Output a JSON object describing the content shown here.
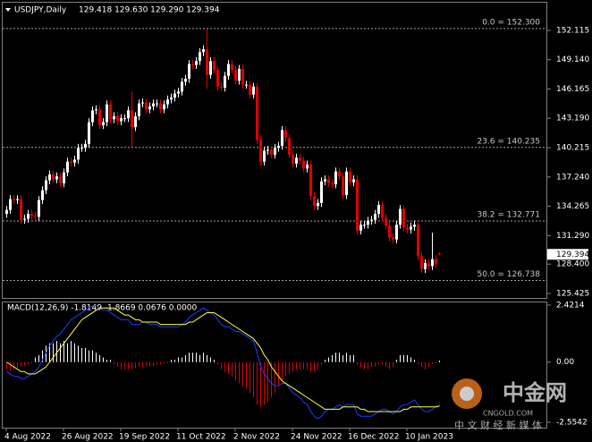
{
  "chart_data": {
    "type": "candlestick",
    "symbol": "USDJPY,Daily",
    "header_values": "129.418 129.630 129.290 129.394",
    "ylim": [
      124.97,
      154.92
    ],
    "yticks": [
      152.115,
      {
        "value": 149.14,
        "label": "149.140"
      },
      146.165,
      {
        "value": 143.19,
        "label": "143.190"
      },
      140.215,
      {
        "value": 137.24,
        "label": "137.240"
      },
      134.265,
      {
        "value": 131.29,
        "label": "131.290"
      },
      {
        "value": 128.4,
        "label": "128.400"
      },
      125.425
    ],
    "xticks": [
      {
        "value": 0,
        "label": "4 Aug 2022"
      },
      {
        "value": 16,
        "label": "26 Aug 2022"
      },
      {
        "value": 32,
        "label": "19 Sep 2022"
      },
      {
        "value": 48,
        "label": "11 Oct 2022"
      },
      {
        "value": 64,
        "label": "2 Nov 2022"
      },
      {
        "value": 80,
        "label": "24 Nov 2022"
      },
      {
        "value": 96,
        "label": "16 Dec 2022"
      },
      {
        "value": 112,
        "label": "10 Jan 2023"
      }
    ],
    "up_color": "#ffffff",
    "down_color": "#e00000",
    "fib_levels": [
      {
        "value": 152.3,
        "label": "0.0 = 152.300"
      },
      {
        "value": 140.235,
        "label": "23.6 = 140.235"
      },
      {
        "value": 132.771,
        "label": "38.2 = 132.771"
      },
      {
        "value": 126.738,
        "label": "50.0 = 126.738"
      }
    ],
    "ohlc": [
      [
        133.5,
        134.3,
        133.1,
        133.9
      ],
      [
        133.9,
        135.4,
        133.5,
        135.0
      ],
      [
        135.0,
        135.4,
        134.5,
        134.9
      ],
      [
        134.9,
        135.4,
        134.5,
        135.0
      ],
      [
        135.0,
        135.4,
        132.5,
        132.9
      ],
      [
        132.9,
        133.4,
        132.5,
        133.0
      ],
      [
        133.0,
        133.9,
        132.6,
        133.5
      ],
      [
        133.5,
        133.9,
        132.9,
        133.3
      ],
      [
        133.3,
        133.7,
        132.8,
        133.2
      ],
      [
        133.2,
        135.3,
        132.8,
        134.9
      ],
      [
        134.9,
        136.3,
        134.5,
        135.9
      ],
      [
        135.9,
        137.3,
        135.5,
        136.9
      ],
      [
        136.9,
        137.9,
        136.5,
        137.5
      ],
      [
        137.5,
        137.9,
        136.6,
        137.0
      ],
      [
        137.0,
        137.7,
        136.6,
        137.3
      ],
      [
        137.3,
        137.7,
        136.2,
        136.6
      ],
      [
        136.6,
        138.1,
        136.2,
        137.7
      ],
      [
        137.7,
        139.2,
        137.3,
        138.8
      ],
      [
        138.8,
        139.2,
        138.3,
        138.7
      ],
      [
        138.7,
        139.4,
        138.3,
        139.0
      ],
      [
        139.0,
        140.6,
        138.6,
        140.2
      ],
      [
        140.2,
        140.6,
        139.8,
        140.2
      ],
      [
        140.2,
        141.0,
        139.8,
        140.6
      ],
      [
        140.6,
        143.2,
        140.2,
        142.8
      ],
      [
        142.8,
        144.4,
        142.4,
        144.0
      ],
      [
        144.0,
        144.5,
        143.6,
        144.1
      ],
      [
        144.1,
        144.5,
        142.1,
        142.5
      ],
      [
        142.5,
        143.2,
        142.1,
        142.8
      ],
      [
        142.8,
        145.0,
        142.4,
        144.6
      ],
      [
        144.6,
        145.0,
        142.7,
        143.1
      ],
      [
        143.1,
        143.8,
        142.7,
        143.4
      ],
      [
        143.4,
        143.8,
        142.5,
        142.9
      ],
      [
        142.9,
        143.6,
        142.5,
        143.2
      ],
      [
        143.2,
        143.6,
        142.8,
        143.2
      ],
      [
        143.2,
        144.4,
        142.8,
        144.0
      ],
      [
        144.0,
        145.9,
        140.3,
        142.3
      ],
      [
        142.3,
        143.8,
        141.9,
        143.4
      ],
      [
        143.4,
        145.1,
        143.0,
        144.7
      ],
      [
        144.7,
        145.2,
        144.3,
        144.8
      ],
      [
        144.8,
        145.2,
        143.7,
        144.1
      ],
      [
        144.1,
        144.8,
        143.7,
        144.4
      ],
      [
        144.4,
        145.1,
        144.0,
        144.7
      ],
      [
        144.7,
        145.1,
        144.3,
        144.7
      ],
      [
        144.7,
        145.1,
        143.7,
        144.1
      ],
      [
        144.1,
        145.0,
        143.7,
        144.6
      ],
      [
        144.6,
        145.5,
        144.2,
        145.1
      ],
      [
        145.1,
        145.7,
        144.7,
        145.3
      ],
      [
        145.3,
        146.1,
        144.9,
        145.7
      ],
      [
        145.7,
        146.3,
        145.3,
        145.9
      ],
      [
        145.9,
        147.3,
        145.5,
        146.9
      ],
      [
        146.9,
        147.6,
        146.5,
        147.2
      ],
      [
        147.2,
        149.1,
        146.8,
        148.7
      ],
      [
        148.7,
        149.1,
        148.2,
        148.6
      ],
      [
        148.6,
        149.4,
        148.2,
        149.0
      ],
      [
        149.0,
        150.3,
        148.6,
        149.9
      ],
      [
        149.9,
        150.6,
        149.5,
        150.2
      ],
      [
        150.2,
        152.3,
        146.2,
        147.6
      ],
      [
        147.6,
        149.4,
        147.2,
        149.0
      ],
      [
        149.0,
        149.4,
        147.7,
        148.1
      ],
      [
        148.1,
        148.5,
        146.0,
        146.4
      ],
      [
        146.4,
        146.8,
        145.9,
        146.3
      ],
      [
        146.3,
        147.9,
        145.9,
        147.5
      ],
      [
        147.5,
        149.1,
        147.1,
        148.7
      ],
      [
        148.7,
        149.1,
        147.7,
        148.1
      ],
      [
        148.1,
        148.5,
        146.6,
        147.0
      ],
      [
        147.0,
        148.6,
        146.6,
        148.2
      ],
      [
        148.2,
        148.6,
        146.2,
        146.6
      ],
      [
        146.6,
        147.0,
        146.2,
        146.6
      ],
      [
        146.6,
        147.0,
        145.2,
        145.6
      ],
      [
        145.6,
        146.8,
        145.2,
        146.4
      ],
      [
        146.4,
        146.8,
        140.6,
        141.0
      ],
      [
        141.0,
        141.4,
        138.4,
        138.8
      ],
      [
        138.8,
        140.3,
        138.4,
        139.9
      ],
      [
        139.9,
        140.4,
        139.5,
        140.0
      ],
      [
        140.0,
        140.4,
        139.1,
        139.5
      ],
      [
        139.5,
        140.6,
        139.1,
        140.2
      ],
      [
        140.2,
        140.8,
        139.8,
        140.4
      ],
      [
        140.4,
        142.4,
        140.0,
        142.0
      ],
      [
        142.0,
        142.4,
        140.8,
        141.2
      ],
      [
        141.2,
        141.6,
        139.1,
        139.5
      ],
      [
        139.5,
        139.9,
        138.2,
        138.6
      ],
      [
        138.6,
        139.6,
        138.2,
        139.2
      ],
      [
        139.2,
        139.6,
        138.5,
        138.9
      ],
      [
        138.9,
        139.3,
        137.7,
        138.1
      ],
      [
        138.1,
        138.9,
        137.7,
        138.5
      ],
      [
        138.5,
        138.9,
        134.9,
        135.3
      ],
      [
        135.3,
        135.7,
        133.9,
        134.3
      ],
      [
        134.3,
        135.0,
        133.9,
        134.6
      ],
      [
        134.6,
        137.2,
        134.2,
        136.8
      ],
      [
        136.8,
        137.4,
        136.4,
        137.0
      ],
      [
        137.0,
        137.4,
        136.2,
        136.6
      ],
      [
        136.6,
        137.0,
        136.1,
        136.5
      ],
      [
        136.5,
        138.2,
        136.1,
        137.8
      ],
      [
        137.8,
        138.2,
        136.9,
        137.3
      ],
      [
        137.3,
        137.7,
        135.0,
        135.4
      ],
      [
        135.4,
        138.2,
        135.0,
        137.8
      ],
      [
        137.8,
        138.2,
        136.3,
        136.7
      ],
      [
        136.7,
        137.4,
        136.3,
        137.0
      ],
      [
        137.0,
        137.4,
        131.4,
        131.8
      ],
      [
        131.8,
        132.8,
        131.4,
        132.4
      ],
      [
        132.4,
        132.8,
        132.0,
        132.4
      ],
      [
        132.4,
        133.2,
        132.0,
        132.8
      ],
      [
        132.8,
        133.3,
        132.4,
        132.9
      ],
      [
        132.9,
        133.9,
        132.5,
        133.5
      ],
      [
        133.5,
        134.8,
        133.1,
        134.4
      ],
      [
        134.4,
        134.8,
        132.7,
        133.1
      ],
      [
        133.1,
        133.5,
        131.9,
        132.3
      ],
      [
        132.3,
        132.7,
        130.7,
        131.1
      ],
      [
        131.1,
        131.5,
        130.5,
        130.9
      ],
      [
        130.9,
        132.8,
        130.5,
        132.4
      ],
      [
        132.4,
        134.4,
        132.0,
        134.0
      ],
      [
        134.0,
        134.4,
        131.7,
        132.1
      ],
      [
        132.1,
        132.5,
        131.5,
        131.9
      ],
      [
        131.9,
        132.6,
        131.5,
        132.2
      ],
      [
        132.2,
        132.8,
        131.8,
        132.4
      ],
      [
        132.4,
        132.8,
        128.8,
        129.2
      ],
      [
        129.2,
        129.6,
        127.5,
        127.9
      ],
      [
        127.9,
        128.9,
        127.5,
        128.5
      ],
      [
        128.5,
        128.9,
        127.8,
        128.2
      ],
      [
        128.2,
        131.6,
        127.8,
        128.9
      ],
      [
        128.9,
        129.3,
        128.0,
        128.4
      ],
      [
        129.418,
        129.63,
        129.29,
        129.394
      ]
    ],
    "macd": {
      "title": "MACD(12,26,9) -1.8149 -1.8669 0.0676 0.0000",
      "ylim": [
        -2.782,
        2.535
      ],
      "yticks": [
        2.4214,
        {
          "value": 0,
          "label": "0.00"
        },
        -2.5542
      ],
      "hist_up_color": "#ffffff",
      "hist_down_color": "#e00000",
      "main_color": "#1e3cff",
      "signal_color": "#ffff40",
      "histogram": [
        -0.3,
        -0.35,
        -0.3,
        -0.25,
        -0.2,
        -0.15,
        -0.1,
        0.0,
        0.2,
        0.3,
        0.5,
        0.7,
        0.8,
        0.8,
        0.9,
        0.8,
        0.9,
        0.8,
        0.9,
        0.8,
        0.7,
        0.6,
        0.6,
        0.5,
        0.5,
        0.4,
        0.3,
        0.2,
        0.1,
        0.1,
        -0.1,
        -0.2,
        -0.3,
        -0.3,
        -0.3,
        -0.3,
        -0.25,
        -0.2,
        -0.2,
        -0.15,
        -0.2,
        -0.15,
        -0.1,
        -0.1,
        -0.05,
        0.0,
        0.1,
        0.1,
        0.2,
        0.2,
        0.3,
        0.4,
        0.4,
        0.4,
        0.3,
        0.4,
        0.3,
        0.2,
        0.1,
        -0.1,
        -0.3,
        -0.4,
        -0.5,
        -0.6,
        -0.8,
        -0.9,
        -1.0,
        -1.1,
        -1.3,
        -1.5,
        -1.8,
        -1.9,
        -1.8,
        -1.7,
        -1.5,
        -1.3,
        -1.0,
        -0.8,
        -0.6,
        -0.5,
        -0.4,
        -0.3,
        -0.3,
        -0.3,
        -0.3,
        -0.4,
        -0.4,
        -0.3,
        -0.1,
        0.1,
        0.2,
        0.3,
        0.4,
        0.4,
        0.3,
        0.4,
        0.3,
        0.3,
        -0.1,
        -0.2,
        -0.3,
        -0.3,
        -0.2,
        -0.2,
        -0.1,
        -0.1,
        -0.2,
        -0.3,
        -0.2,
        0.1,
        0.3,
        0.3,
        0.3,
        0.2,
        0.1,
        -0.1,
        -0.2,
        -0.3,
        -0.2,
        -0.1,
        0.0,
        0.0676
      ],
      "main": [
        -0.4,
        -0.5,
        -0.6,
        -0.6,
        -0.7,
        -0.7,
        -0.6,
        -0.5,
        -0.4,
        -0.2,
        0.1,
        0.4,
        0.7,
        0.9,
        1.1,
        1.2,
        1.4,
        1.6,
        1.8,
        1.9,
        2.0,
        2.1,
        2.2,
        2.3,
        2.4,
        2.4,
        2.3,
        2.2,
        2.2,
        2.1,
        2.0,
        1.9,
        1.8,
        1.8,
        1.8,
        1.6,
        1.6,
        1.6,
        1.7,
        1.7,
        1.6,
        1.6,
        1.6,
        1.5,
        1.5,
        1.5,
        1.5,
        1.5,
        1.5,
        1.6,
        1.7,
        1.9,
        2.0,
        2.1,
        2.2,
        2.3,
        2.2,
        2.1,
        2.0,
        1.8,
        1.6,
        1.5,
        1.5,
        1.4,
        1.3,
        1.3,
        1.2,
        1.1,
        1.0,
        0.9,
        0.4,
        -0.2,
        -0.5,
        -0.7,
        -0.9,
        -1.0,
        -1.0,
        -0.9,
        -0.9,
        -1.1,
        -1.3,
        -1.4,
        -1.5,
        -1.7,
        -1.8,
        -2.1,
        -2.3,
        -2.4,
        -2.3,
        -2.1,
        -2.0,
        -2.0,
        -1.9,
        -1.8,
        -1.9,
        -1.8,
        -1.8,
        -1.8,
        -2.2,
        -2.3,
        -2.3,
        -2.3,
        -2.3,
        -2.2,
        -2.1,
        -2.0,
        -2.0,
        -2.1,
        -2.2,
        -2.1,
        -1.9,
        -1.8,
        -1.8,
        -1.7,
        -1.6,
        -1.8,
        -2.0,
        -2.1,
        -2.1,
        -2.0,
        -1.9,
        -1.8149
      ],
      "signal": [
        0.0,
        -0.1,
        -0.2,
        -0.3,
        -0.4,
        -0.4,
        -0.5,
        -0.5,
        -0.5,
        -0.4,
        -0.3,
        -0.2,
        0.0,
        0.2,
        0.4,
        0.6,
        0.8,
        1.0,
        1.2,
        1.4,
        1.6,
        1.8,
        1.9,
        2.0,
        2.1,
        2.2,
        2.3,
        2.3,
        2.3,
        2.3,
        2.3,
        2.2,
        2.1,
        2.0,
        2.0,
        1.9,
        1.8,
        1.8,
        1.7,
        1.7,
        1.7,
        1.7,
        1.7,
        1.6,
        1.6,
        1.6,
        1.6,
        1.6,
        1.6,
        1.6,
        1.6,
        1.7,
        1.7,
        1.8,
        1.9,
        2.0,
        2.1,
        2.1,
        2.1,
        2.0,
        1.9,
        1.8,
        1.7,
        1.6,
        1.5,
        1.4,
        1.3,
        1.2,
        1.1,
        1.0,
        0.8,
        0.6,
        0.3,
        0.1,
        -0.2,
        -0.4,
        -0.6,
        -0.8,
        -0.9,
        -1.0,
        -1.1,
        -1.2,
        -1.3,
        -1.4,
        -1.5,
        -1.6,
        -1.7,
        -1.8,
        -1.9,
        -2.0,
        -2.0,
        -2.0,
        -2.0,
        -2.0,
        -1.9,
        -1.9,
        -1.9,
        -1.9,
        -1.9,
        -2.0,
        -2.0,
        -2.1,
        -2.1,
        -2.1,
        -2.1,
        -2.1,
        -2.1,
        -2.1,
        -2.1,
        -2.1,
        -2.1,
        -2.0,
        -2.0,
        -1.9,
        -1.9,
        -1.9,
        -1.9,
        -1.9,
        -1.9,
        -1.9,
        -1.9,
        -1.8669
      ]
    }
  },
  "watermark": {
    "brand": "中金网",
    "site": "CNGOLD.COM",
    "slogan": "中 文 财 经 新 媒 体"
  }
}
